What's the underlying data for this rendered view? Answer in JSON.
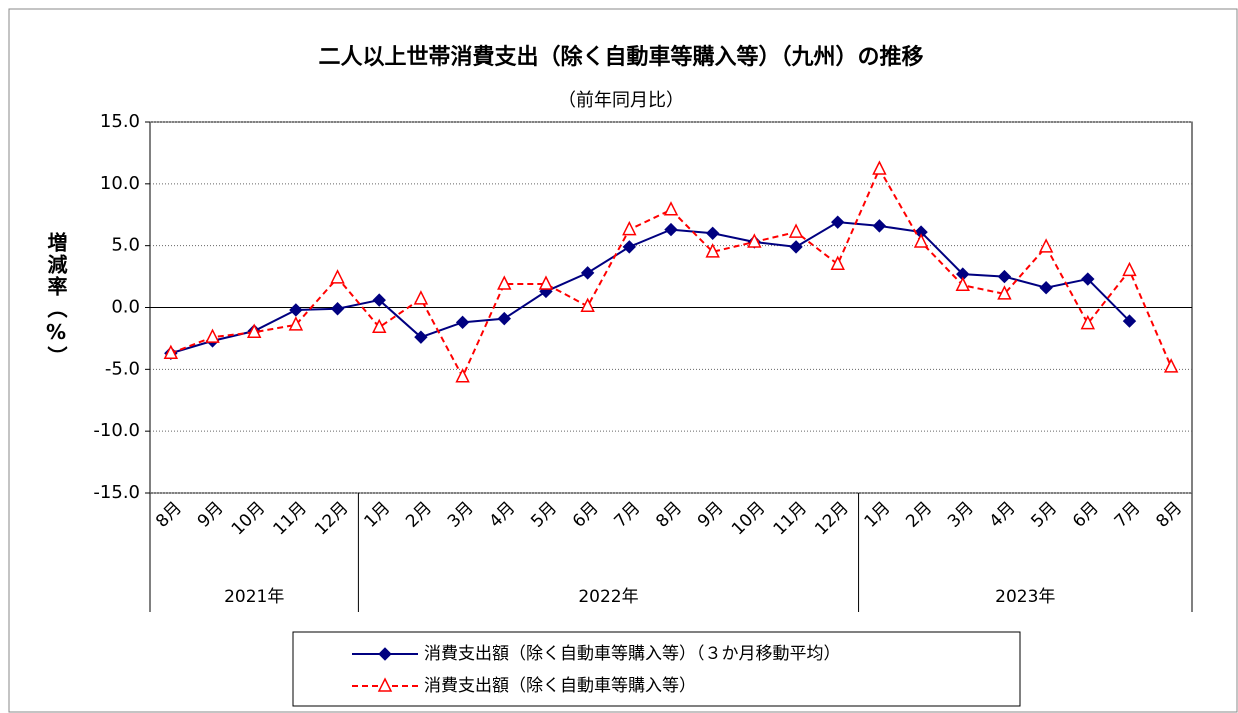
{
  "chart_data": {
    "type": "line",
    "title": "二人以上世帯消費支出（除く自動車等購入等）（九州）の推移",
    "subtitle": "（前年同月比）",
    "y_label": "増減率（%）",
    "categories": [
      "8月",
      "9月",
      "10月",
      "11月",
      "12月",
      "1月",
      "2月",
      "3月",
      "4月",
      "5月",
      "6月",
      "7月",
      "8月",
      "9月",
      "10月",
      "11月",
      "12月",
      "1月",
      "2月",
      "3月",
      "4月",
      "5月",
      "6月",
      "7月",
      "8月"
    ],
    "category_groups": [
      {
        "label": "2021年",
        "size": 5
      },
      {
        "label": "2022年",
        "size": 12
      },
      {
        "label": "2023年",
        "size": 8
      }
    ],
    "series": [
      {
        "name": "消費支出額（除く自動車等購入等）（３か月移動平均）",
        "color": "#000080",
        "marker": "diamond",
        "dashed": false,
        "values": [
          -3.7,
          -2.7,
          -1.9,
          -0.2,
          -0.1,
          0.6,
          -2.4,
          -1.2,
          -0.9,
          1.3,
          2.8,
          4.9,
          6.3,
          6.0,
          5.3,
          4.9,
          6.9,
          6.6,
          6.1,
          2.7,
          2.5,
          1.6,
          2.3,
          -1.1,
          null
        ]
      },
      {
        "name": "消費支出額（除く自動車等購入等）",
        "color": "#ff0000",
        "marker": "triangle",
        "dashed": true,
        "values": [
          -3.7,
          -2.4,
          -2.0,
          -1.4,
          2.4,
          -1.6,
          0.7,
          -5.6,
          1.9,
          1.9,
          0.1,
          6.3,
          7.9,
          4.5,
          5.3,
          6.1,
          3.5,
          11.2,
          5.3,
          1.8,
          1.1,
          4.9,
          -1.3,
          3.0,
          -4.8
        ]
      }
    ],
    "ylim": [
      -15,
      15
    ],
    "yticks": [
      {
        "value": -15,
        "label": "-15.0"
      },
      {
        "value": -10,
        "label": "-10.0"
      },
      {
        "value": -5,
        "label": "-5.0"
      },
      {
        "value": 0,
        "label": "0.0"
      },
      {
        "value": 5,
        "label": "5.0"
      },
      {
        "value": 10,
        "label": "10.0"
      },
      {
        "value": 15,
        "label": "15.0"
      }
    ],
    "grid": true
  }
}
